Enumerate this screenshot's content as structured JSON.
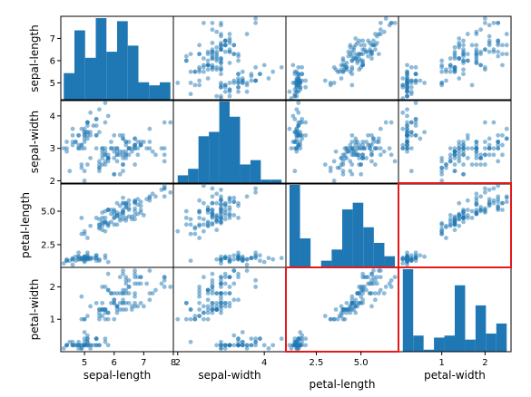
{
  "chart_data": {
    "type": "scatter",
    "title": "",
    "variables": [
      "sepal-length",
      "sepal-width",
      "petal-length",
      "petal-width"
    ],
    "axis_ranges": {
      "sepal-length": [
        4.2,
        8.0
      ],
      "sepal-width": [
        1.9,
        4.5
      ],
      "petal-length": [
        0.8,
        7.1
      ],
      "petal-width": [
        -0.0,
        2.6
      ]
    },
    "bottom_ticks": [
      {
        "labels": [
          "5",
          "6",
          "7",
          "8"
        ],
        "values": [
          5,
          6,
          7,
          8
        ]
      },
      {
        "labels": [
          "2",
          "4"
        ],
        "values": [
          2,
          4
        ]
      },
      {
        "labels": [
          "2.5",
          "5.0"
        ],
        "values": [
          2.5,
          5.0
        ]
      },
      {
        "labels": [
          "1",
          "2"
        ],
        "values": [
          1,
          2
        ]
      }
    ],
    "left_ticks": [
      {
        "labels": [
          "5",
          "6",
          "7"
        ],
        "values": [
          5,
          6,
          7
        ]
      },
      {
        "labels": [
          "2",
          "3",
          "4"
        ],
        "values": [
          2,
          3,
          4
        ]
      },
      {
        "labels": [
          "2.5",
          "5.0"
        ],
        "values": [
          2.5,
          5.0
        ]
      },
      {
        "labels": [
          "1",
          "2"
        ],
        "values": [
          1,
          2
        ]
      }
    ],
    "histograms": [
      {
        "variable": "sepal-length",
        "bin_edges": [
          4.3,
          4.66,
          5.02,
          5.38,
          5.74,
          6.1,
          6.46,
          6.82,
          7.18,
          7.54,
          7.9
        ],
        "counts": [
          9,
          23,
          14,
          27,
          16,
          26,
          18,
          6,
          5,
          6
        ]
      },
      {
        "variable": "sepal-width",
        "bin_edges": [
          2.0,
          2.24,
          2.48,
          2.72,
          2.96,
          3.2,
          3.44,
          3.68,
          3.92,
          4.16,
          4.4
        ],
        "counts": [
          4,
          7,
          22,
          24,
          38,
          31,
          9,
          11,
          2,
          2
        ]
      },
      {
        "variable": "petal-length",
        "bin_edges": [
          1.0,
          1.59,
          2.18,
          2.77,
          3.36,
          3.95,
          4.54,
          5.13,
          5.72,
          6.31,
          6.9
        ],
        "counts": [
          37,
          13,
          0,
          3,
          8,
          26,
          29,
          18,
          11,
          5
        ]
      },
      {
        "variable": "petal-width",
        "bin_edges": [
          0.1,
          0.34,
          0.58,
          0.82,
          1.06,
          1.3,
          1.54,
          1.78,
          2.02,
          2.26,
          2.5
        ],
        "counts": [
          41,
          8,
          1,
          7,
          8,
          33,
          6,
          23,
          9,
          14
        ]
      }
    ],
    "samples": [
      [
        5.1,
        3.5,
        1.4,
        0.2
      ],
      [
        4.9,
        3.0,
        1.4,
        0.2
      ],
      [
        4.7,
        3.2,
        1.3,
        0.2
      ],
      [
        4.6,
        3.1,
        1.5,
        0.2
      ],
      [
        5.0,
        3.6,
        1.4,
        0.2
      ],
      [
        5.4,
        3.9,
        1.7,
        0.4
      ],
      [
        4.6,
        3.4,
        1.4,
        0.3
      ],
      [
        5.0,
        3.4,
        1.5,
        0.2
      ],
      [
        4.4,
        2.9,
        1.4,
        0.2
      ],
      [
        4.9,
        3.1,
        1.5,
        0.1
      ],
      [
        5.4,
        3.7,
        1.5,
        0.2
      ],
      [
        4.8,
        3.4,
        1.6,
        0.2
      ],
      [
        4.8,
        3.0,
        1.4,
        0.1
      ],
      [
        4.3,
        3.0,
        1.1,
        0.1
      ],
      [
        5.8,
        4.0,
        1.2,
        0.2
      ],
      [
        5.7,
        4.4,
        1.5,
        0.4
      ],
      [
        5.4,
        3.9,
        1.3,
        0.4
      ],
      [
        5.1,
        3.5,
        1.4,
        0.3
      ],
      [
        5.7,
        3.8,
        1.7,
        0.3
      ],
      [
        5.1,
        3.8,
        1.5,
        0.3
      ],
      [
        5.4,
        3.4,
        1.7,
        0.2
      ],
      [
        5.1,
        3.7,
        1.5,
        0.4
      ],
      [
        4.6,
        3.6,
        1.0,
        0.2
      ],
      [
        5.1,
        3.3,
        1.7,
        0.5
      ],
      [
        4.8,
        3.4,
        1.9,
        0.2
      ],
      [
        5.0,
        3.0,
        1.6,
        0.2
      ],
      [
        5.0,
        3.4,
        1.6,
        0.4
      ],
      [
        5.2,
        3.5,
        1.5,
        0.2
      ],
      [
        5.2,
        3.4,
        1.4,
        0.2
      ],
      [
        4.7,
        3.2,
        1.6,
        0.2
      ],
      [
        4.8,
        3.1,
        1.6,
        0.2
      ],
      [
        5.4,
        3.4,
        1.5,
        0.4
      ],
      [
        5.2,
        4.1,
        1.5,
        0.1
      ],
      [
        5.5,
        4.2,
        1.4,
        0.2
      ],
      [
        4.9,
        3.1,
        1.5,
        0.2
      ],
      [
        5.0,
        3.2,
        1.2,
        0.2
      ],
      [
        5.5,
        3.5,
        1.3,
        0.2
      ],
      [
        4.9,
        3.6,
        1.4,
        0.1
      ],
      [
        4.4,
        3.0,
        1.3,
        0.2
      ],
      [
        5.1,
        3.4,
        1.5,
        0.2
      ],
      [
        5.0,
        3.5,
        1.3,
        0.3
      ],
      [
        4.5,
        2.3,
        1.3,
        0.3
      ],
      [
        4.4,
        3.2,
        1.3,
        0.2
      ],
      [
        5.0,
        3.5,
        1.6,
        0.6
      ],
      [
        5.1,
        3.8,
        1.9,
        0.4
      ],
      [
        4.8,
        3.0,
        1.4,
        0.3
      ],
      [
        5.1,
        3.8,
        1.6,
        0.2
      ],
      [
        4.6,
        3.2,
        1.4,
        0.2
      ],
      [
        5.3,
        3.7,
        1.5,
        0.2
      ],
      [
        5.0,
        3.3,
        1.4,
        0.2
      ],
      [
        7.0,
        3.2,
        4.7,
        1.4
      ],
      [
        6.4,
        3.2,
        4.5,
        1.5
      ],
      [
        6.9,
        3.1,
        4.9,
        1.5
      ],
      [
        5.5,
        2.3,
        4.0,
        1.3
      ],
      [
        6.5,
        2.8,
        4.6,
        1.5
      ],
      [
        5.7,
        2.8,
        4.5,
        1.3
      ],
      [
        6.3,
        3.3,
        4.7,
        1.6
      ],
      [
        4.9,
        2.4,
        3.3,
        1.0
      ],
      [
        6.6,
        2.9,
        4.6,
        1.3
      ],
      [
        5.2,
        2.7,
        3.9,
        1.4
      ],
      [
        5.0,
        2.0,
        3.5,
        1.0
      ],
      [
        5.9,
        3.0,
        4.2,
        1.5
      ],
      [
        6.0,
        2.2,
        4.0,
        1.0
      ],
      [
        6.1,
        2.9,
        4.7,
        1.4
      ],
      [
        5.6,
        2.9,
        3.6,
        1.3
      ],
      [
        6.7,
        3.1,
        4.4,
        1.4
      ],
      [
        5.6,
        3.0,
        4.5,
        1.5
      ],
      [
        5.8,
        2.7,
        4.1,
        1.0
      ],
      [
        6.2,
        2.2,
        4.5,
        1.5
      ],
      [
        5.6,
        2.5,
        3.9,
        1.1
      ],
      [
        5.9,
        3.2,
        4.8,
        1.8
      ],
      [
        6.1,
        2.8,
        4.0,
        1.3
      ],
      [
        6.3,
        2.5,
        4.9,
        1.5
      ],
      [
        6.1,
        2.8,
        4.7,
        1.2
      ],
      [
        6.4,
        2.9,
        4.3,
        1.3
      ],
      [
        6.6,
        3.0,
        4.4,
        1.4
      ],
      [
        6.8,
        2.8,
        4.8,
        1.4
      ],
      [
        6.7,
        3.0,
        5.0,
        1.7
      ],
      [
        6.0,
        2.9,
        4.5,
        1.5
      ],
      [
        5.7,
        2.6,
        3.5,
        1.0
      ],
      [
        5.5,
        2.4,
        3.8,
        1.1
      ],
      [
        5.5,
        2.4,
        3.7,
        1.0
      ],
      [
        5.8,
        2.7,
        3.9,
        1.2
      ],
      [
        6.0,
        2.7,
        5.1,
        1.6
      ],
      [
        5.4,
        3.0,
        4.5,
        1.5
      ],
      [
        6.0,
        3.4,
        4.5,
        1.6
      ],
      [
        6.7,
        3.1,
        4.7,
        1.5
      ],
      [
        6.3,
        2.3,
        4.4,
        1.3
      ],
      [
        5.6,
        3.0,
        4.1,
        1.3
      ],
      [
        5.5,
        2.5,
        4.0,
        1.3
      ],
      [
        5.5,
        2.6,
        4.4,
        1.2
      ],
      [
        6.1,
        3.0,
        4.6,
        1.4
      ],
      [
        5.8,
        2.6,
        4.0,
        1.2
      ],
      [
        5.0,
        2.3,
        3.3,
        1.0
      ],
      [
        5.6,
        2.7,
        4.2,
        1.3
      ],
      [
        5.7,
        3.0,
        4.2,
        1.2
      ],
      [
        5.7,
        2.9,
        4.2,
        1.3
      ],
      [
        6.2,
        2.9,
        4.3,
        1.3
      ],
      [
        5.1,
        2.5,
        3.0,
        1.1
      ],
      [
        5.7,
        2.8,
        4.1,
        1.3
      ],
      [
        6.3,
        3.3,
        6.0,
        2.5
      ],
      [
        5.8,
        2.7,
        5.1,
        1.9
      ],
      [
        7.1,
        3.0,
        5.9,
        2.1
      ],
      [
        6.3,
        2.9,
        5.6,
        1.8
      ],
      [
        6.5,
        3.0,
        5.8,
        2.2
      ],
      [
        7.6,
        3.0,
        6.6,
        2.1
      ],
      [
        4.9,
        2.5,
        4.5,
        1.7
      ],
      [
        7.3,
        2.9,
        6.3,
        1.8
      ],
      [
        6.7,
        2.5,
        5.8,
        1.8
      ],
      [
        7.2,
        3.6,
        6.1,
        2.5
      ],
      [
        6.5,
        3.2,
        5.1,
        2.0
      ],
      [
        6.4,
        2.7,
        5.3,
        1.9
      ],
      [
        6.8,
        3.0,
        5.5,
        2.1
      ],
      [
        5.7,
        2.5,
        5.0,
        2.0
      ],
      [
        5.8,
        2.8,
        5.1,
        2.4
      ],
      [
        6.4,
        3.2,
        5.3,
        2.3
      ],
      [
        6.5,
        3.0,
        5.5,
        1.8
      ],
      [
        7.7,
        3.8,
        6.7,
        2.2
      ],
      [
        7.7,
        2.6,
        6.9,
        2.3
      ],
      [
        6.0,
        2.2,
        5.0,
        1.5
      ],
      [
        6.9,
        3.2,
        5.7,
        2.3
      ],
      [
        5.6,
        2.8,
        4.9,
        2.0
      ],
      [
        7.7,
        2.8,
        6.7,
        2.0
      ],
      [
        6.3,
        2.7,
        4.9,
        1.8
      ],
      [
        6.7,
        3.3,
        5.7,
        2.1
      ],
      [
        7.2,
        3.2,
        6.0,
        1.8
      ],
      [
        6.2,
        2.8,
        4.8,
        1.8
      ],
      [
        6.1,
        3.0,
        4.9,
        1.8
      ],
      [
        6.4,
        2.8,
        5.6,
        2.1
      ],
      [
        7.2,
        3.0,
        5.8,
        1.6
      ],
      [
        7.4,
        2.8,
        6.1,
        1.9
      ],
      [
        7.9,
        3.8,
        6.4,
        2.0
      ],
      [
        6.4,
        2.8,
        5.6,
        2.2
      ],
      [
        6.3,
        2.8,
        5.1,
        1.5
      ],
      [
        6.1,
        2.6,
        5.6,
        1.4
      ],
      [
        7.7,
        3.0,
        6.1,
        2.3
      ],
      [
        6.3,
        3.4,
        5.6,
        2.4
      ],
      [
        6.4,
        3.1,
        5.5,
        1.8
      ],
      [
        6.0,
        3.0,
        4.8,
        1.8
      ],
      [
        6.9,
        3.1,
        5.4,
        2.1
      ],
      [
        6.7,
        3.1,
        5.6,
        2.4
      ],
      [
        6.9,
        3.1,
        5.1,
        2.3
      ],
      [
        5.8,
        2.7,
        5.1,
        1.9
      ],
      [
        6.8,
        3.2,
        5.9,
        2.3
      ],
      [
        6.7,
        3.3,
        5.7,
        2.5
      ],
      [
        6.7,
        3.0,
        5.2,
        2.3
      ],
      [
        6.3,
        2.5,
        5.0,
        1.9
      ],
      [
        6.5,
        3.0,
        5.2,
        2.0
      ],
      [
        6.2,
        3.4,
        5.4,
        2.3
      ],
      [
        5.9,
        3.0,
        5.1,
        1.8
      ]
    ],
    "highlighted_panels": [
      {
        "row": "petal-length",
        "col": "petal-width"
      },
      {
        "row": "petal-width",
        "col": "petal-length"
      }
    ],
    "colors": {
      "marker": "#1f77b4",
      "bar": "#1f77b4",
      "highlight": "#e31a1c"
    },
    "grid": false,
    "legend": "none"
  }
}
